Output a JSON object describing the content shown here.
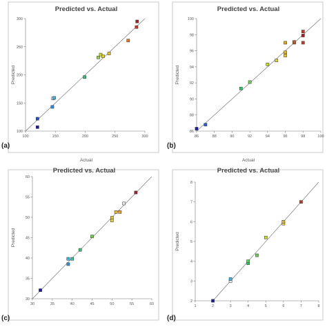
{
  "chart_data": [
    {
      "type": "scatter",
      "panel_label": "(a)",
      "title": "Predicted vs. Actual",
      "xlabel": "Actual",
      "ylabel": "Predicted",
      "xlim": [
        100,
        300
      ],
      "ylim": [
        100,
        300
      ],
      "xticks": [
        "100",
        "150",
        "200",
        "250",
        "300"
      ],
      "yticks": [
        "100",
        "150",
        "200",
        "250",
        "300"
      ],
      "points": [
        {
          "x": 120,
          "y": 107,
          "color": "#1a1aa8"
        },
        {
          "x": 120,
          "y": 122,
          "color": "#1a4fd0"
        },
        {
          "x": 145,
          "y": 143,
          "color": "#2a8fe0"
        },
        {
          "x": 146,
          "y": 158,
          "color": "#e8e8e8"
        },
        {
          "x": 148,
          "y": 159,
          "color": "#39b6e6"
        },
        {
          "x": 199,
          "y": 196,
          "color": "#2ec46a"
        },
        {
          "x": 222,
          "y": 231,
          "color": "#9bd33b"
        },
        {
          "x": 226,
          "y": 236,
          "color": "#c8d62b"
        },
        {
          "x": 230,
          "y": 233,
          "color": "#e8d02c"
        },
        {
          "x": 240,
          "y": 238,
          "color": "#e8c22a"
        },
        {
          "x": 272,
          "y": 261,
          "color": "#d9762a"
        },
        {
          "x": 286,
          "y": 285,
          "color": "#c43a2a"
        },
        {
          "x": 287,
          "y": 295,
          "color": "#a81d1d"
        }
      ]
    },
    {
      "type": "scatter",
      "panel_label": "(b)",
      "title": "Predicted vs. Actual",
      "xlabel": "Actual",
      "ylabel": "Predicted",
      "xlim": [
        86,
        100
      ],
      "ylim": [
        86,
        100
      ],
      "xticks": [
        "86",
        "88",
        "90",
        "92",
        "94",
        "96",
        "98",
        "100"
      ],
      "yticks": [
        "86",
        "88",
        "90",
        "92",
        "94",
        "96",
        "98",
        "100"
      ],
      "points": [
        {
          "x": 86,
          "y": 86.3,
          "color": "#1a1aa8"
        },
        {
          "x": 87,
          "y": 86.8,
          "color": "#2a5fd0"
        },
        {
          "x": 91,
          "y": 91.3,
          "color": "#2ec46a"
        },
        {
          "x": 92,
          "y": 92.1,
          "color": "#6ccf4a"
        },
        {
          "x": 94,
          "y": 94.3,
          "color": "#c8d62b"
        },
        {
          "x": 95,
          "y": 94.8,
          "color": "#e8d02c"
        },
        {
          "x": 96,
          "y": 95.4,
          "color": "#e8c22a"
        },
        {
          "x": 96,
          "y": 95.8,
          "color": "#e8b42a"
        },
        {
          "x": 96,
          "y": 97.0,
          "color": "#e0a02a"
        },
        {
          "x": 97,
          "y": 97.0,
          "color": "#d9762a"
        },
        {
          "x": 97,
          "y": 97.1,
          "color": "#c85a2a"
        },
        {
          "x": 98,
          "y": 97.0,
          "color": "#b4402a"
        },
        {
          "x": 98,
          "y": 97.9,
          "color": "#a82020"
        },
        {
          "x": 98,
          "y": 98.4,
          "color": "#c43a2a"
        }
      ]
    },
    {
      "type": "scatter",
      "panel_label": "(c)",
      "title": "Predicted vs. Actual",
      "xlabel": "",
      "ylabel": "Predicted",
      "xlim": [
        30,
        60
      ],
      "ylim": [
        30,
        60
      ],
      "xticks": [
        "30",
        "35",
        "40",
        "45",
        "50",
        "55",
        "60"
      ],
      "yticks": [
        "30",
        "35",
        "40",
        "45",
        "50",
        "55",
        "60"
      ],
      "points": [
        {
          "x": 32,
          "y": 32.1,
          "color": "#1a1aa8"
        },
        {
          "x": 39,
          "y": 38.5,
          "color": "#2a8fe0"
        },
        {
          "x": 39,
          "y": 39.8,
          "color": "#39b6e6"
        },
        {
          "x": 40,
          "y": 39.8,
          "color": "#2ec4a0"
        },
        {
          "x": 42,
          "y": 42.0,
          "color": "#2ec46a"
        },
        {
          "x": 45,
          "y": 45.3,
          "color": "#6ccf4a"
        },
        {
          "x": 50,
          "y": 49.2,
          "color": "#e8d02c"
        },
        {
          "x": 50,
          "y": 49.9,
          "color": "#e8c22a"
        },
        {
          "x": 51,
          "y": 51.3,
          "color": "#e8b42a"
        },
        {
          "x": 52,
          "y": 51.3,
          "color": "#e0a02a"
        },
        {
          "x": 53,
          "y": 53.4,
          "color": "#e8e8e8"
        },
        {
          "x": 56,
          "y": 56.1,
          "color": "#a82020"
        }
      ]
    },
    {
      "type": "scatter",
      "panel_label": "(d)",
      "title": "Predicted vs. Actual",
      "xlabel": "",
      "ylabel": "Predicted",
      "xlim": [
        1,
        8
      ],
      "ylim": [
        2,
        8
      ],
      "xticks": [
        "1",
        "2",
        "3",
        "4",
        "5",
        "6",
        "7",
        "8"
      ],
      "yticks": [
        "2",
        "3",
        "4",
        "5",
        "6",
        "7",
        "8"
      ],
      "points": [
        {
          "x": 2,
          "y": 2.0,
          "color": "#1a1aa8"
        },
        {
          "x": 3,
          "y": 3.0,
          "color": "#e8e8e8"
        },
        {
          "x": 3,
          "y": 3.1,
          "color": "#39b6e6"
        },
        {
          "x": 4,
          "y": 3.9,
          "color": "#2ec46a"
        },
        {
          "x": 4,
          "y": 4.0,
          "color": "#5ccf5a"
        },
        {
          "x": 4.5,
          "y": 4.3,
          "color": "#6ccf4a"
        },
        {
          "x": 5,
          "y": 5.2,
          "color": "#c8d62b"
        },
        {
          "x": 6,
          "y": 5.9,
          "color": "#e8d02c"
        },
        {
          "x": 6,
          "y": 6.0,
          "color": "#e8b42a"
        },
        {
          "x": 7,
          "y": 7.0,
          "color": "#c43a2a"
        }
      ]
    }
  ]
}
